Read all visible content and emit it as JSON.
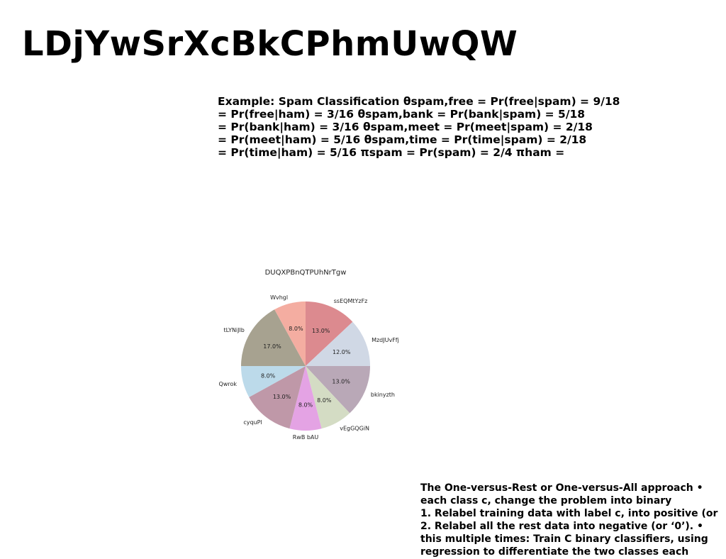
{
  "header": {
    "title": "LDjYwSrXcBkCPhmUwQW"
  },
  "paragraphs": {
    "spam_example": {
      "lines": [
        "Example: Spam Classification θspam,free = Pr(free|spam) = 9/18",
        "= Pr(free|ham) = 3/16 θspam,bank = Pr(bank|spam) = 5/18",
        "= Pr(bank|ham) = 3/16 θspam,meet = Pr(meet|spam) = 2/18",
        "= Pr(meet|ham) = 5/16 θspam,time = Pr(time|spam) = 2/18",
        "= Pr(time|ham) = 5/16 πspam = Pr(spam) = 2/4 πham ="
      ]
    },
    "one_vs_rest": {
      "lines": [
        "The One-versus-Rest or One-versus-All approach •",
        "each class c, change the problem into binary",
        "1. Relabel training data with label c, into positive (or",
        "2. Relabel all the rest data into negative (or ‘0’). •",
        "this multiple times: Train C binary classifiers, using",
        "regression to differentiate the two classes each"
      ]
    }
  },
  "chart_data": {
    "type": "pie",
    "title": "DUQXPBnQTPUhNrTgw",
    "slices": [
      {
        "label": "ssEQMtYzFz",
        "value": 13.0,
        "pct_label": "13.0%",
        "color": "#dc8a8f"
      },
      {
        "label": "MzdJUvFfj",
        "value": 12.0,
        "pct_label": "12.0%",
        "color": "#d0d8e5"
      },
      {
        "label": "bkinyzth",
        "value": 13.0,
        "pct_label": "13.0%",
        "color": "#b9a8b7"
      },
      {
        "label": "vEgGQGiN",
        "value": 8.0,
        "pct_label": "8.0%",
        "color": "#d4dcc4"
      },
      {
        "label": "RwB bAU",
        "value": 8.0,
        "pct_label": "8.0%",
        "color": "#e4a3e4"
      },
      {
        "label": "cyquPl",
        "value": 13.0,
        "pct_label": "13.0%",
        "color": "#bf98a8"
      },
      {
        "label": "Qwrok",
        "value": 8.0,
        "pct_label": "8.0%",
        "color": "#bcdaea"
      },
      {
        "label": "tLYNiJlb",
        "value": 17.0,
        "pct_label": "17.0%",
        "color": "#a7a290"
      },
      {
        "label": "Wvhgl",
        "value": 8.0,
        "pct_label": "8.0%",
        "color": "#f4ada1"
      }
    ],
    "start_angle": "top",
    "direction": "clockwise",
    "legend": "none"
  }
}
